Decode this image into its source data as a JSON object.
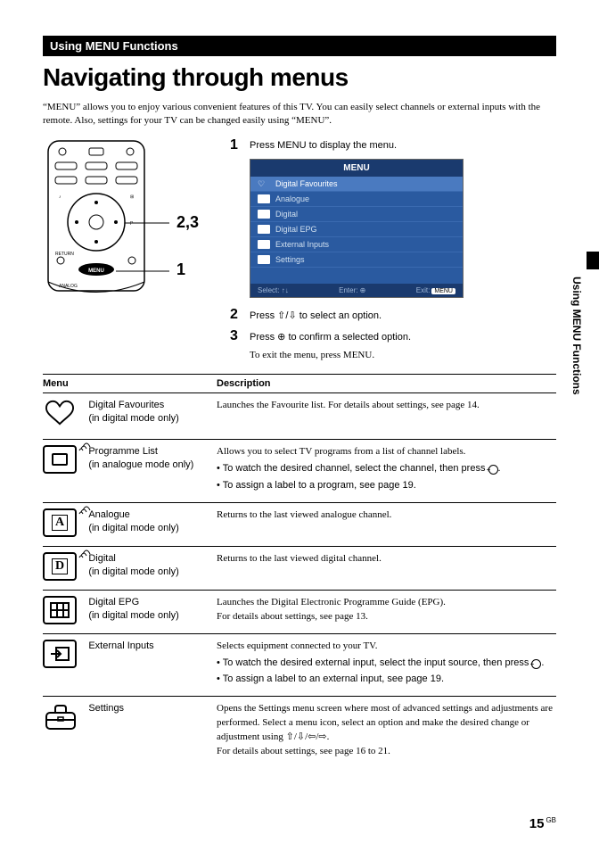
{
  "header_bar": "Using MENU Functions",
  "main_title": "Navigating through menus",
  "intro": "“MENU” allows you to enjoy various convenient features of this TV. You can easily select channels or external inputs with the remote. Also, settings for your TV can be changed easily using “MENU”.",
  "callout_23": "2,3",
  "callout_1": "1",
  "steps": [
    {
      "n": "1",
      "text": "Press MENU to display the menu."
    },
    {
      "n": "2",
      "text": "Press ⇧/⇩ to select an option."
    },
    {
      "n": "3",
      "text": "Press ⊕ to confirm a selected option."
    }
  ],
  "exit_text": "To exit the menu, press MENU.",
  "menu_screenshot": {
    "title": "MENU",
    "items": [
      {
        "label": "Digital Favourites",
        "selected": true
      },
      {
        "label": "Analogue"
      },
      {
        "label": "Digital"
      },
      {
        "label": "Digital EPG"
      },
      {
        "label": "External Inputs"
      },
      {
        "label": "Settings"
      }
    ],
    "footer": {
      "select": "Select:",
      "enter": "Enter:",
      "exit": "Exit:",
      "exit_badge": "MENU"
    }
  },
  "table": {
    "head_menu": "Menu",
    "head_desc": "Description",
    "rows": [
      {
        "icon": "heart",
        "name": "Digital Favourites",
        "sub": "(in digital mode only)",
        "desc": "Launches the Favourite list. For details about settings, see page 14.",
        "bullets": []
      },
      {
        "icon": "tv-signal",
        "name": "Programme List",
        "sub": "(in analogue mode only)",
        "desc": "Allows you to select TV programs from a list of channel labels.",
        "bullets": [
          "To watch the desired channel, select the channel, then press ⊕.",
          "To assign a label to a program, see page 19."
        ]
      },
      {
        "icon": "a-signal",
        "letter": "A",
        "name": "Analogue",
        "sub": "(in digital mode only)",
        "desc": "Returns to the last viewed analogue channel.",
        "bullets": []
      },
      {
        "icon": "d-signal",
        "letter": "D",
        "name": "Digital",
        "sub": "(in digital mode only)",
        "desc": "Returns to the last viewed digital channel.",
        "bullets": []
      },
      {
        "icon": "grid",
        "name": "Digital EPG",
        "sub": "(in digital mode only)",
        "desc": "Launches the Digital Electronic Programme Guide (EPG).\nFor details about settings, see page 13.",
        "bullets": []
      },
      {
        "icon": "input",
        "name": "External Inputs",
        "sub": "",
        "desc": "Selects equipment connected to your TV.",
        "bullets": [
          "To watch the desired external input, select the input source, then press ⊕.",
          "To assign a label to an external input, see page 19."
        ]
      },
      {
        "icon": "toolbox",
        "name": "Settings",
        "sub": "",
        "desc": "Opens the Settings menu screen where most of advanced settings and adjustments are performed. Select a menu icon, select an option and make the desired change or adjustment using ⇧/⇩/⇦/⇨.\nFor details about settings, see page 16 to 21.",
        "bullets": []
      }
    ]
  },
  "side_tab": "Using MENU Functions",
  "page_number": "15",
  "page_region": "GB"
}
